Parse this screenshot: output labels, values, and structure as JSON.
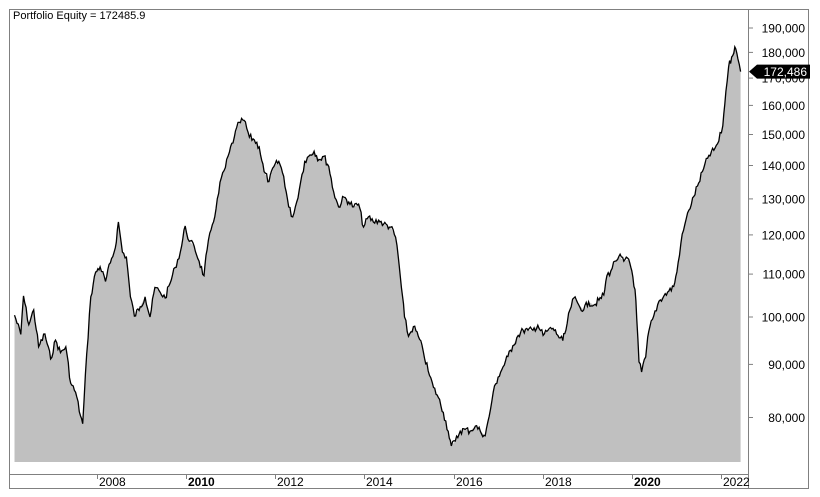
{
  "window": {
    "title_label": "Portfolio Equity = 172485.9"
  },
  "colors": {
    "background": "#ffffff",
    "fill": "#c0c0c0",
    "line": "#000000",
    "frame": "#808080",
    "marker_bg": "#000000",
    "marker_text": "#ffffff"
  },
  "last_value_marker": {
    "label": "172,486",
    "value": 172486
  },
  "chart_data": {
    "type": "area",
    "title": "Portfolio Equity = 172485.9",
    "xlabel": "",
    "ylabel": "",
    "y_scale": "log",
    "ylim": [
      72000,
      195000
    ],
    "xlim": [
      2006.15,
      2022.5
    ],
    "grid": false,
    "legend": "none",
    "y_axis_position": "right",
    "x_ticks": [
      {
        "label": "2008",
        "x": 2008,
        "bold": false
      },
      {
        "label": "2010",
        "x": 2010,
        "bold": true
      },
      {
        "label": "2012",
        "x": 2012,
        "bold": false
      },
      {
        "label": "2014",
        "x": 2014,
        "bold": false
      },
      {
        "label": "2016",
        "x": 2016,
        "bold": false
      },
      {
        "label": "2018",
        "x": 2018,
        "bold": false
      },
      {
        "label": "2020",
        "x": 2020,
        "bold": true
      },
      {
        "label": "2022",
        "x": 2022,
        "bold": false
      }
    ],
    "y_ticks": [
      {
        "label": "80,000",
        "value": 80000
      },
      {
        "label": "90,000",
        "value": 90000
      },
      {
        "label": "100,000",
        "value": 100000
      },
      {
        "label": "110,000",
        "value": 110000
      },
      {
        "label": "120,000",
        "value": 120000
      },
      {
        "label": "130,000",
        "value": 130000
      },
      {
        "label": "140,000",
        "value": 140000
      },
      {
        "label": "150,000",
        "value": 150000
      },
      {
        "label": "160,000",
        "value": 160000
      },
      {
        "label": "170,000",
        "value": 170000
      },
      {
        "label": "180,000",
        "value": 180000
      },
      {
        "label": "190,000",
        "value": 190000
      }
    ],
    "series": [
      {
        "name": "Portfolio Equity",
        "last_value": 172485.9,
        "points": [
          [
            2006.15,
            100400
          ],
          [
            2006.29,
            96200
          ],
          [
            2006.35,
            104800
          ],
          [
            2006.47,
            98300
          ],
          [
            2006.58,
            101600
          ],
          [
            2006.69,
            93600
          ],
          [
            2006.83,
            96300
          ],
          [
            2006.96,
            91100
          ],
          [
            2007.07,
            95000
          ],
          [
            2007.18,
            92400
          ],
          [
            2007.3,
            93600
          ],
          [
            2007.41,
            86300
          ],
          [
            2007.52,
            84600
          ],
          [
            2007.63,
            80300
          ],
          [
            2007.68,
            78900
          ],
          [
            2007.77,
            92100
          ],
          [
            2007.86,
            104600
          ],
          [
            2007.97,
            110500
          ],
          [
            2008.07,
            111800
          ],
          [
            2008.19,
            108200
          ],
          [
            2008.3,
            112800
          ],
          [
            2008.41,
            116600
          ],
          [
            2008.48,
            123500
          ],
          [
            2008.57,
            115500
          ],
          [
            2008.66,
            114200
          ],
          [
            2008.75,
            104600
          ],
          [
            2008.84,
            100200
          ],
          [
            2008.97,
            102300
          ],
          [
            2009.08,
            104600
          ],
          [
            2009.19,
            100000
          ],
          [
            2009.3,
            106800
          ],
          [
            2009.42,
            105600
          ],
          [
            2009.53,
            104300
          ],
          [
            2009.64,
            107800
          ],
          [
            2009.75,
            111600
          ],
          [
            2009.87,
            115500
          ],
          [
            2009.98,
            122400
          ],
          [
            2010.07,
            118300
          ],
          [
            2010.18,
            117000
          ],
          [
            2010.29,
            113200
          ],
          [
            2010.4,
            109600
          ],
          [
            2010.47,
            116100
          ],
          [
            2010.56,
            121400
          ],
          [
            2010.67,
            127100
          ],
          [
            2010.79,
            136300
          ],
          [
            2010.88,
            139400
          ],
          [
            2010.97,
            144200
          ],
          [
            2011.08,
            149100
          ],
          [
            2011.19,
            154100
          ],
          [
            2011.3,
            154800
          ],
          [
            2011.42,
            149100
          ],
          [
            2011.53,
            148200
          ],
          [
            2011.64,
            145900
          ],
          [
            2011.75,
            138100
          ],
          [
            2011.86,
            135100
          ],
          [
            2011.97,
            139700
          ],
          [
            2012.08,
            141300
          ],
          [
            2012.19,
            136700
          ],
          [
            2012.3,
            127700
          ],
          [
            2012.39,
            124900
          ],
          [
            2012.48,
            129100
          ],
          [
            2012.57,
            135100
          ],
          [
            2012.66,
            141300
          ],
          [
            2012.75,
            142900
          ],
          [
            2012.87,
            144500
          ],
          [
            2012.98,
            141900
          ],
          [
            2013.09,
            142900
          ],
          [
            2013.2,
            139700
          ],
          [
            2013.31,
            132000
          ],
          [
            2013.42,
            127700
          ],
          [
            2013.54,
            130500
          ],
          [
            2013.65,
            129100
          ],
          [
            2013.76,
            127700
          ],
          [
            2013.87,
            128500
          ],
          [
            2013.98,
            122100
          ],
          [
            2014.09,
            124900
          ],
          [
            2014.2,
            123500
          ],
          [
            2014.32,
            124000
          ],
          [
            2014.43,
            122900
          ],
          [
            2014.59,
            122100
          ],
          [
            2014.7,
            119400
          ],
          [
            2014.76,
            114200
          ],
          [
            2014.83,
            106800
          ],
          [
            2014.9,
            100000
          ],
          [
            2014.99,
            95800
          ],
          [
            2015.1,
            97900
          ],
          [
            2015.21,
            95800
          ],
          [
            2015.32,
            92600
          ],
          [
            2015.43,
            88700
          ],
          [
            2015.55,
            85500
          ],
          [
            2015.66,
            83600
          ],
          [
            2015.77,
            80900
          ],
          [
            2015.88,
            77600
          ],
          [
            2015.95,
            75100
          ],
          [
            2016.04,
            75900
          ],
          [
            2016.15,
            77600
          ],
          [
            2016.26,
            77900
          ],
          [
            2016.37,
            77600
          ],
          [
            2016.49,
            78500
          ],
          [
            2016.6,
            77600
          ],
          [
            2016.71,
            76800
          ],
          [
            2016.8,
            80200
          ],
          [
            2016.89,
            84600
          ],
          [
            2017.0,
            87500
          ],
          [
            2017.11,
            89500
          ],
          [
            2017.22,
            91600
          ],
          [
            2017.33,
            93800
          ],
          [
            2017.45,
            96000
          ],
          [
            2017.56,
            97100
          ],
          [
            2017.67,
            97100
          ],
          [
            2017.78,
            97100
          ],
          [
            2017.89,
            98200
          ],
          [
            2018.01,
            96000
          ],
          [
            2018.12,
            97100
          ],
          [
            2018.23,
            97500
          ],
          [
            2018.34,
            96000
          ],
          [
            2018.45,
            94900
          ],
          [
            2018.52,
            97100
          ],
          [
            2018.61,
            101600
          ],
          [
            2018.7,
            104300
          ],
          [
            2018.81,
            102700
          ],
          [
            2018.92,
            101600
          ],
          [
            2019.03,
            103400
          ],
          [
            2019.15,
            102700
          ],
          [
            2019.26,
            103800
          ],
          [
            2019.37,
            105000
          ],
          [
            2019.44,
            109600
          ],
          [
            2019.53,
            110800
          ],
          [
            2019.62,
            113200
          ],
          [
            2019.71,
            114400
          ],
          [
            2019.82,
            113200
          ],
          [
            2019.93,
            113700
          ],
          [
            2020.0,
            110800
          ],
          [
            2020.07,
            106300
          ],
          [
            2020.11,
            99800
          ],
          [
            2020.16,
            90500
          ],
          [
            2020.22,
            88500
          ],
          [
            2020.31,
            91500
          ],
          [
            2020.38,
            96900
          ],
          [
            2020.49,
            100200
          ],
          [
            2020.61,
            103600
          ],
          [
            2020.72,
            104800
          ],
          [
            2020.83,
            105900
          ],
          [
            2020.94,
            107000
          ],
          [
            2021.01,
            110500
          ],
          [
            2021.1,
            117800
          ],
          [
            2021.19,
            122900
          ],
          [
            2021.28,
            126800
          ],
          [
            2021.39,
            130700
          ],
          [
            2021.5,
            134700
          ],
          [
            2021.61,
            139000
          ],
          [
            2021.73,
            143200
          ],
          [
            2021.84,
            144800
          ],
          [
            2021.95,
            147800
          ],
          [
            2022.04,
            152900
          ],
          [
            2022.11,
            165100
          ],
          [
            2022.17,
            174300
          ],
          [
            2022.24,
            178200
          ],
          [
            2022.31,
            182200
          ],
          [
            2022.38,
            177400
          ],
          [
            2022.44,
            172486
          ]
        ]
      }
    ]
  }
}
